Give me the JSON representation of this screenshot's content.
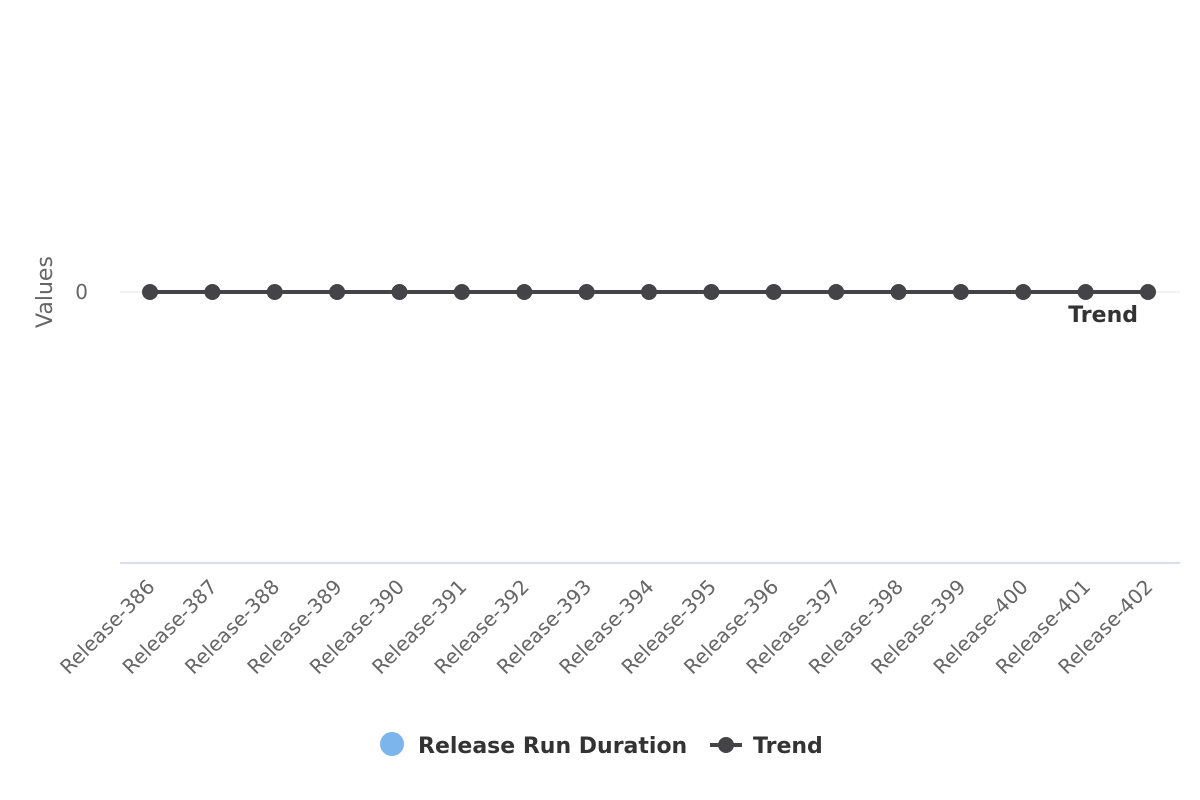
{
  "chart_data": {
    "type": "line",
    "title": "",
    "ylabel": "Values",
    "y_tick_labels": [
      "0"
    ],
    "categories": [
      "Release-386",
      "Release-387",
      "Release-388",
      "Release-389",
      "Release-390",
      "Release-391",
      "Release-392",
      "Release-393",
      "Release-394",
      "Release-395",
      "Release-396",
      "Release-397",
      "Release-398",
      "Release-399",
      "Release-400",
      "Release-401",
      "Release-402"
    ],
    "series": [
      {
        "name": "Release Run Duration",
        "kind": "bar",
        "color": "#7cb5ec",
        "values": [
          0,
          0,
          0,
          0,
          0,
          0,
          0,
          0,
          0,
          0,
          0,
          0,
          0,
          0,
          0,
          0,
          0
        ]
      },
      {
        "name": "Trend",
        "kind": "line",
        "color": "#434348",
        "values": [
          0,
          0,
          0,
          0,
          0,
          0,
          0,
          0,
          0,
          0,
          0,
          0,
          0,
          0,
          0,
          0,
          0
        ]
      }
    ],
    "series_end_label": "Trend",
    "legend_position": "bottom-center",
    "grid": true
  }
}
